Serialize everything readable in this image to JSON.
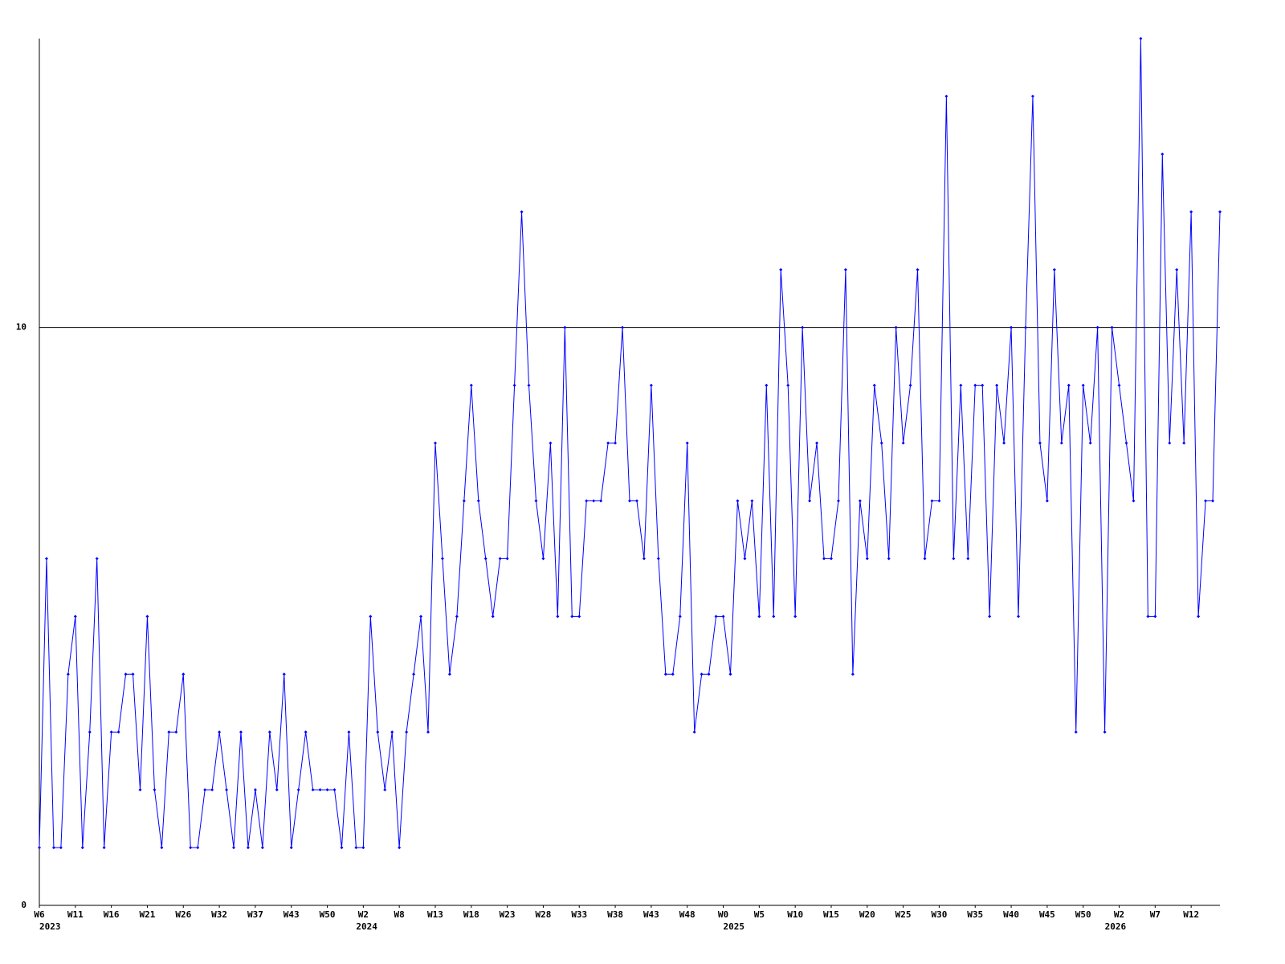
{
  "chart_data": {
    "type": "line",
    "x": [
      0,
      1,
      2,
      3,
      4,
      5,
      6,
      7,
      8,
      9,
      10,
      11,
      12,
      13,
      14,
      15,
      16,
      17,
      18,
      19,
      20,
      21,
      22,
      23,
      24,
      25,
      26,
      27,
      28,
      29,
      30,
      31,
      32,
      33,
      34,
      35,
      36,
      37,
      38,
      39,
      40,
      41,
      42,
      43,
      44,
      45,
      46,
      47,
      48,
      49,
      50,
      51,
      52,
      53,
      54,
      55,
      56,
      57,
      58,
      59,
      60,
      61,
      62,
      63,
      64,
      65,
      66,
      67,
      68,
      69,
      70,
      71,
      72,
      73,
      74,
      75,
      76,
      77,
      78,
      79,
      80,
      81,
      82,
      83,
      84,
      85,
      86,
      87,
      88,
      89,
      90,
      91,
      92,
      93,
      94,
      95,
      96,
      97,
      98,
      99,
      100,
      101,
      102,
      103,
      104,
      105,
      106,
      107,
      108,
      109,
      110,
      111,
      112,
      113,
      114,
      115,
      116,
      117,
      118,
      119,
      120,
      121,
      122,
      123,
      124,
      125,
      126,
      127,
      128,
      129,
      130,
      131,
      132,
      133,
      134,
      135,
      136,
      137,
      138,
      139,
      140,
      141,
      142,
      143,
      144,
      145,
      146,
      147,
      148,
      149,
      150,
      151,
      152,
      153,
      154,
      155,
      156,
      157,
      158,
      159,
      160,
      161,
      162,
      163,
      164
    ],
    "series": [
      {
        "color": "#0000ff",
        "values": [
          1,
          6,
          1,
          1,
          4,
          5,
          1,
          3,
          6,
          1,
          3,
          3,
          4,
          4,
          2,
          5,
          2,
          1,
          3,
          3,
          4,
          1,
          1,
          2,
          2,
          3,
          2,
          1,
          3,
          1,
          2,
          1,
          3,
          2,
          4,
          1,
          2,
          3,
          2,
          2,
          2,
          2,
          1,
          3,
          1,
          1,
          5,
          3,
          2,
          3,
          1,
          3,
          4,
          5,
          3,
          8,
          6,
          4,
          5,
          7,
          9,
          7,
          6,
          5,
          6,
          6,
          9,
          12,
          9,
          7,
          6,
          8,
          5,
          10,
          5,
          5,
          7,
          7,
          7,
          8,
          8,
          10,
          7,
          7,
          6,
          9,
          6,
          4,
          4,
          5,
          8,
          3,
          4,
          4,
          5,
          5,
          4,
          7,
          6,
          7,
          5,
          9,
          5,
          11,
          9,
          5,
          10,
          7,
          8,
          6,
          6,
          7,
          11,
          4,
          7,
          6,
          9,
          8,
          6,
          10,
          8,
          9,
          11,
          6,
          7,
          7,
          14,
          6,
          9,
          6,
          9,
          9,
          5,
          9,
          8,
          10,
          5,
          10,
          14,
          8,
          7,
          11,
          8,
          9,
          3,
          9,
          8,
          10,
          3,
          10,
          9,
          8,
          7,
          15,
          5,
          5,
          13,
          8,
          11,
          8,
          12,
          5,
          7,
          7,
          12
        ]
      }
    ],
    "xlim": [
      0,
      164
    ],
    "xticks": [
      {
        "value": 0,
        "label": "W6"
      },
      {
        "value": 5,
        "label": "W11"
      },
      {
        "value": 10,
        "label": "W16"
      },
      {
        "value": 15,
        "label": "W21"
      },
      {
        "value": 20,
        "label": "W26"
      },
      {
        "value": 25,
        "label": "W32"
      },
      {
        "value": 30,
        "label": "W37"
      },
      {
        "value": 35,
        "label": "W43"
      },
      {
        "value": 40,
        "label": "W50"
      },
      {
        "value": 45,
        "label": "W2"
      },
      {
        "value": 50,
        "label": "W8"
      },
      {
        "value": 55,
        "label": "W13"
      },
      {
        "value": 60,
        "label": "W18"
      },
      {
        "value": 65,
        "label": "W23"
      },
      {
        "value": 70,
        "label": "W28"
      },
      {
        "value": 75,
        "label": "W33"
      },
      {
        "value": 80,
        "label": "W38"
      },
      {
        "value": 85,
        "label": "W43"
      },
      {
        "value": 90,
        "label": "W48"
      },
      {
        "value": 95,
        "label": "W0"
      },
      {
        "value": 100,
        "label": "W5"
      },
      {
        "value": 105,
        "label": "W10"
      },
      {
        "value": 110,
        "label": "W15"
      },
      {
        "value": 115,
        "label": "W20"
      },
      {
        "value": 120,
        "label": "W25"
      },
      {
        "value": 125,
        "label": "W30"
      },
      {
        "value": 130,
        "label": "W35"
      },
      {
        "value": 135,
        "label": "W40"
      },
      {
        "value": 140,
        "label": "W45"
      },
      {
        "value": 145,
        "label": "W50"
      },
      {
        "value": 150,
        "label": "W2"
      },
      {
        "value": 155,
        "label": "W7"
      },
      {
        "value": 160,
        "label": "W12"
      }
    ],
    "year_ticks": [
      {
        "value": 0,
        "label": "2023"
      },
      {
        "value": 44,
        "label": "2024"
      },
      {
        "value": 95,
        "label": "2025"
      },
      {
        "value": 148,
        "label": "2026"
      }
    ],
    "ylim": [
      0,
      15
    ],
    "yticks": [
      0,
      10
    ],
    "grid": true
  }
}
